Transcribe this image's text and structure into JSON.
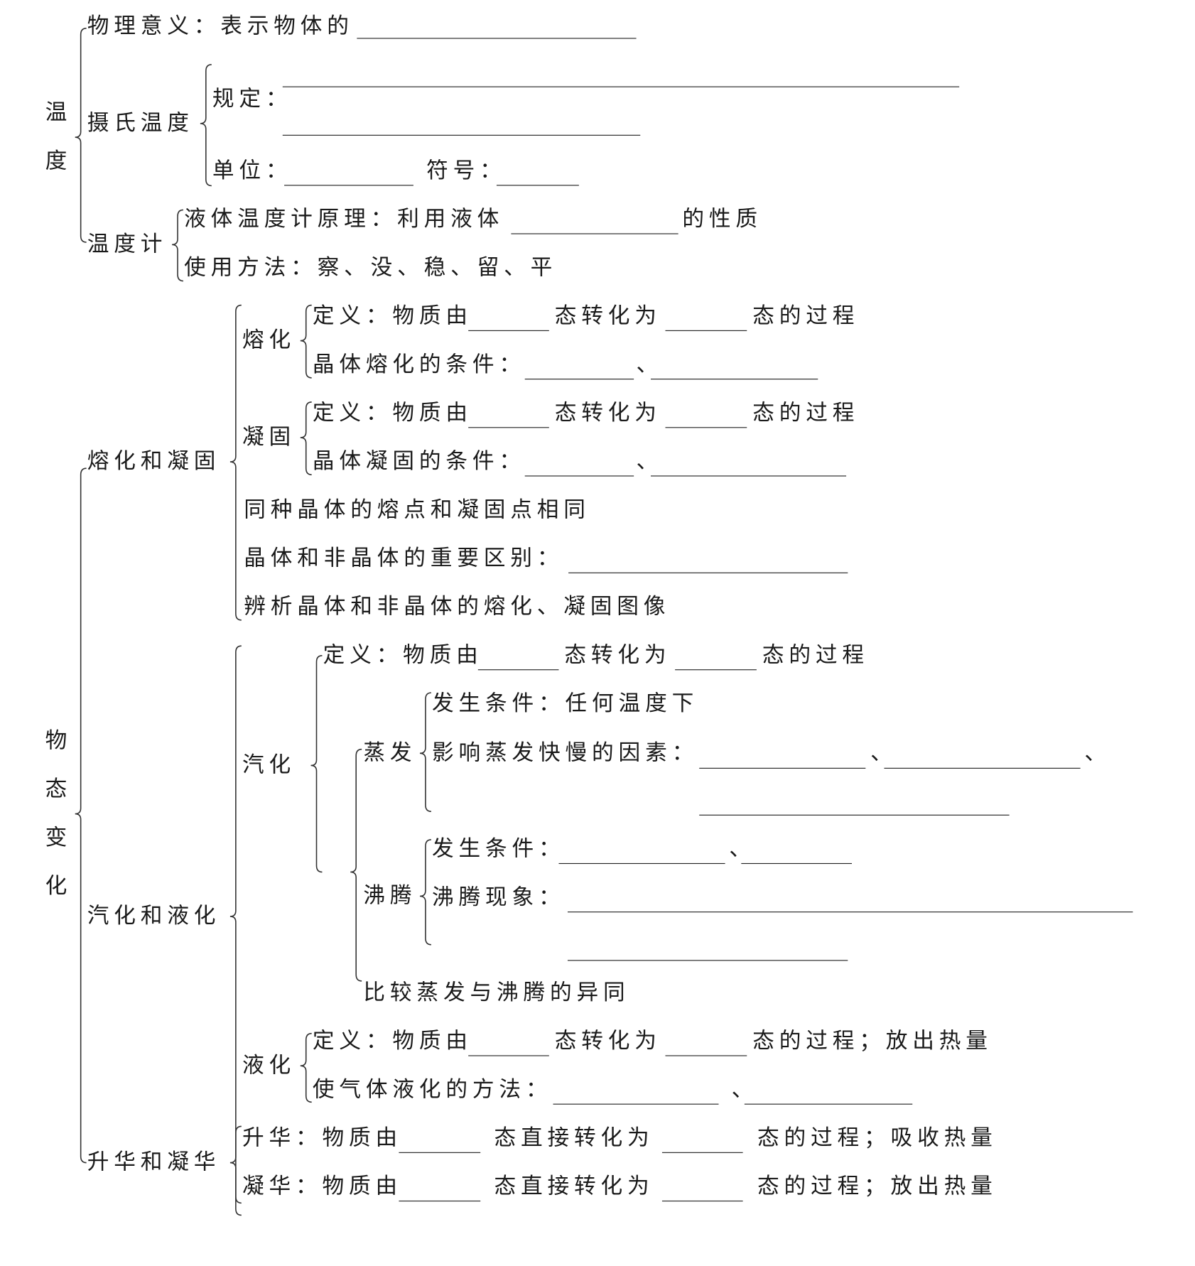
{
  "temperature": {
    "title_chars": [
      "温",
      "度"
    ],
    "meaning": {
      "label": "物理意义：表示物体的"
    },
    "celsius": {
      "label": "摄氏温度",
      "rule": "规定：",
      "unit": "单位：",
      "symbol": "符号："
    },
    "thermometer": {
      "label": "温度计",
      "principle_prefix": "液体温度计原理：利用液体",
      "principle_suffix": "的性质",
      "usage": "使用方法：察、没、稳、留、平"
    }
  },
  "state_change": {
    "title_chars": [
      "物",
      "态",
      "变",
      "化"
    ],
    "melt_solidify": {
      "label": "熔化和凝固",
      "melting": {
        "label": "熔化",
        "def_a": "定义：物质由",
        "def_b": "态转化为",
        "def_c": "态的过程",
        "cond": "晶体熔化的条件：",
        "sep": "、"
      },
      "solidifying": {
        "label": "凝固",
        "def_a": "定义：物质由",
        "def_b": "态转化为",
        "def_c": "态的过程",
        "cond": "晶体凝固的条件：",
        "sep": "、"
      },
      "same_point": "同种晶体的熔点和凝固点相同",
      "difference": "晶体和非晶体的重要区别：",
      "graphs": "辨析晶体和非晶体的熔化、凝固图像"
    },
    "vaporize_liquefy": {
      "label": "汽化和液化",
      "vaporization": {
        "label": "汽化",
        "def_a": "定义：物质由",
        "def_b": "态转化为",
        "def_c": "态的过程",
        "evaporation": {
          "label": "蒸发",
          "condition": "发生条件：任何温度下",
          "factors": "影响蒸发快慢的因素：",
          "sep": "、"
        },
        "boiling": {
          "label": "沸腾",
          "condition": "发生条件：",
          "sep": "、",
          "phenomenon": "沸腾现象："
        },
        "compare": "比较蒸发与沸腾的异同"
      },
      "liquefaction": {
        "label": "液化",
        "def_a": "定义：物质由",
        "def_b": "态转化为",
        "def_c": "态的过程；放出热量",
        "methods": "使气体液化的方法：",
        "sep": "、"
      }
    },
    "sublimation": {
      "label": "升华和凝华",
      "sublime": {
        "a": "升华：物质由",
        "b": "态直接转化为",
        "c": "态的过程；吸收热量"
      },
      "deposit": {
        "a": "凝华：物质由",
        "b": "态直接转化为",
        "c": "态的过程；放出热量"
      }
    }
  }
}
